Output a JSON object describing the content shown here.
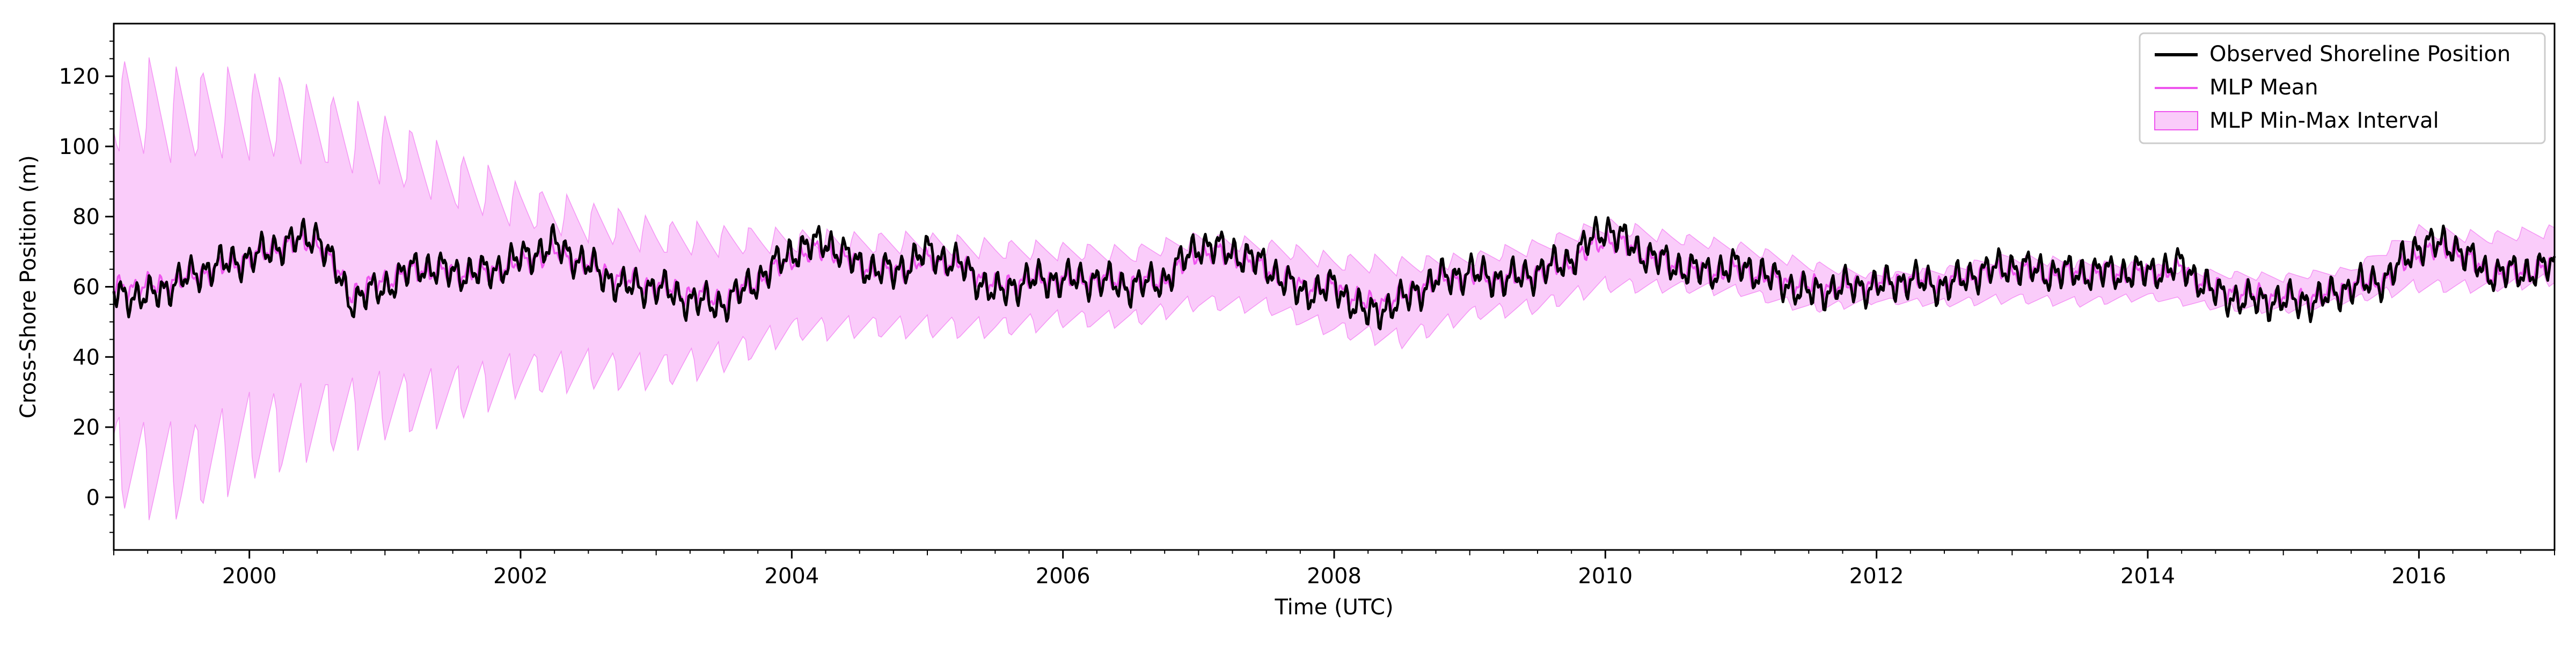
{
  "chart_data": {
    "type": "line",
    "title": "",
    "xlabel": "Time (UTC)",
    "ylabel": "Cross-Shore Position (m)",
    "xlim": [
      "1999-01-01",
      "2017-01-01"
    ],
    "ylim": [
      -15,
      135
    ],
    "x_ticks": [
      "2000",
      "2002",
      "2004",
      "2006",
      "2008",
      "2010",
      "2012",
      "2014",
      "2016"
    ],
    "y_ticks": [
      0,
      20,
      40,
      60,
      80,
      100,
      120
    ],
    "grid": false,
    "legend_position": "top-right",
    "legend": [
      "Observed Shoreline Position",
      "MLP Mean",
      "MLP Min-Max Interval"
    ],
    "series": [
      {
        "name": "Observed Shoreline Position",
        "color": "#000000",
        "x": [
          "1999-01",
          "1999-04",
          "1999-07",
          "1999-10",
          "2000-01",
          "2000-04",
          "2000-07",
          "2000-10",
          "2001-01",
          "2001-04",
          "2001-07",
          "2001-10",
          "2002-01",
          "2002-04",
          "2002-07",
          "2002-10",
          "2003-01",
          "2003-04",
          "2003-07",
          "2003-10",
          "2004-01",
          "2004-04",
          "2004-07",
          "2004-10",
          "2005-01",
          "2005-04",
          "2005-07",
          "2005-10",
          "2006-01",
          "2006-04",
          "2006-07",
          "2006-10",
          "2007-01",
          "2007-04",
          "2007-07",
          "2007-10",
          "2008-01",
          "2008-04",
          "2008-07",
          "2008-10",
          "2009-01",
          "2009-04",
          "2009-07",
          "2009-10",
          "2010-01",
          "2010-04",
          "2010-07",
          "2010-10",
          "2011-01",
          "2011-04",
          "2011-07",
          "2011-10",
          "2012-01",
          "2012-04",
          "2012-07",
          "2012-10",
          "2013-01",
          "2013-04",
          "2013-07",
          "2013-10",
          "2014-01",
          "2014-04",
          "2014-07",
          "2014-10",
          "2015-01",
          "2015-04",
          "2015-07",
          "2015-10",
          "2016-01",
          "2016-04",
          "2016-07",
          "2016-10",
          "2017-01"
        ],
        "values": [
          58,
          57,
          62,
          66,
          68,
          72,
          75,
          56,
          60,
          66,
          64,
          64,
          68,
          72,
          66,
          60,
          60,
          56,
          55,
          62,
          70,
          73,
          66,
          64,
          70,
          66,
          58,
          62,
          62,
          62,
          60,
          62,
          72,
          70,
          66,
          58,
          60,
          52,
          56,
          62,
          64,
          62,
          64,
          68,
          77,
          70,
          66,
          64,
          66,
          62,
          58,
          60,
          60,
          62,
          60,
          64,
          66,
          64,
          64,
          64,
          64,
          66,
          58,
          56,
          56,
          56,
          60,
          62,
          72,
          72,
          64,
          64,
          66
        ]
      },
      {
        "name": "MLP Mean",
        "color": "#ee55ee",
        "x": [
          "1999-01",
          "1999-04",
          "1999-07",
          "1999-10",
          "2000-01",
          "2000-04",
          "2000-07",
          "2000-10",
          "2001-01",
          "2001-04",
          "2001-07",
          "2001-10",
          "2002-01",
          "2002-04",
          "2002-07",
          "2002-10",
          "2003-01",
          "2003-04",
          "2003-07",
          "2003-10",
          "2004-01",
          "2004-04",
          "2004-07",
          "2004-10",
          "2005-01",
          "2005-04",
          "2005-07",
          "2005-10",
          "2006-01",
          "2006-04",
          "2006-07",
          "2006-10",
          "2007-01",
          "2007-04",
          "2007-07",
          "2007-10",
          "2008-01",
          "2008-04",
          "2008-07",
          "2008-10",
          "2009-01",
          "2009-04",
          "2009-07",
          "2009-10",
          "2010-01",
          "2010-04",
          "2010-07",
          "2010-10",
          "2011-01",
          "2011-04",
          "2011-07",
          "2011-10",
          "2012-01",
          "2012-04",
          "2012-07",
          "2012-10",
          "2013-01",
          "2013-04",
          "2013-07",
          "2013-10",
          "2014-01",
          "2014-04",
          "2014-07",
          "2014-10",
          "2015-01",
          "2015-04",
          "2015-07",
          "2015-10",
          "2016-01",
          "2016-04",
          "2016-07",
          "2016-10",
          "2017-01"
        ],
        "values": [
          60,
          60,
          62,
          65,
          68,
          72,
          73,
          58,
          62,
          65,
          64,
          64,
          67,
          70,
          66,
          62,
          60,
          58,
          56,
          62,
          68,
          71,
          66,
          64,
          68,
          66,
          60,
          62,
          62,
          62,
          61,
          62,
          70,
          69,
          65,
          60,
          60,
          55,
          57,
          62,
          63,
          62,
          64,
          67,
          74,
          70,
          66,
          64,
          65,
          62,
          60,
          60,
          61,
          62,
          61,
          64,
          65,
          64,
          64,
          64,
          64,
          65,
          59,
          58,
          57,
          57,
          60,
          62,
          70,
          71,
          64,
          64,
          66
        ]
      }
    ],
    "interval": {
      "name": "MLP Min-Max Interval",
      "color": "#ee55ee",
      "fill_opacity": 0.3,
      "x": [
        "1999-01",
        "1999-07",
        "2000-01",
        "2000-07",
        "2001-01",
        "2001-07",
        "2002-01",
        "2002-07",
        "2003-01",
        "2003-07",
        "2004-01",
        "2004-07",
        "2005-01",
        "2005-07",
        "2006-01",
        "2006-07",
        "2007-01",
        "2007-07",
        "2008-01",
        "2008-07",
        "2009-01",
        "2009-07",
        "2010-01",
        "2010-07",
        "2011-01",
        "2011-07",
        "2012-01",
        "2012-07",
        "2013-01",
        "2013-07",
        "2014-01",
        "2014-07",
        "2015-01",
        "2015-07",
        "2016-01",
        "2016-07",
        "2017-01"
      ],
      "upper": [
        127,
        124,
        123,
        118,
        110,
        100,
        90,
        85,
        80,
        78,
        77,
        76,
        76,
        74,
        73,
        72,
        76,
        74,
        70,
        69,
        70,
        74,
        80,
        76,
        73,
        68,
        64,
        66,
        70,
        68,
        67,
        65,
        64,
        66,
        78,
        76,
        78
      ],
      "lower": [
        -5,
        -8,
        3,
        10,
        15,
        20,
        28,
        30,
        30,
        35,
        44,
        45,
        45,
        45,
        48,
        48,
        53,
        52,
        45,
        42,
        50,
        52,
        58,
        58,
        57,
        52,
        55,
        54,
        55,
        54,
        56,
        53,
        52,
        55,
        58,
        58,
        60
      ]
    }
  }
}
